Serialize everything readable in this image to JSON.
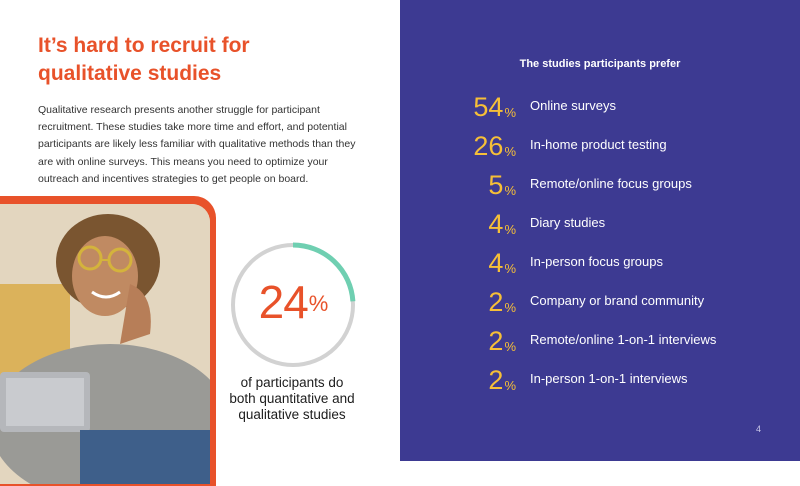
{
  "left": {
    "title_lines": [
      "It’s hard to recruit for",
      "qualitative studies"
    ],
    "body": "Qualitative research presents another struggle for participant recruitment. These studies take more time and effort, and potential participants are likely less familiar with qualitative methods than they are with online surveys. This means you need to optimize your outreach and incentives strategies to get people on board."
  },
  "stat": {
    "value": "24",
    "unit": "%",
    "fraction": 0.24,
    "caption_lines": [
      "of participants do",
      "both quantitative and",
      "qualitative studies"
    ]
  },
  "right": {
    "title": "The studies participants prefer",
    "items": [
      {
        "value": "54",
        "unit": "%",
        "label": "Online surveys"
      },
      {
        "value": "26",
        "unit": "%",
        "label": "In-home product testing"
      },
      {
        "value": "5",
        "unit": "%",
        "label": "Remote/online focus groups"
      },
      {
        "value": "4",
        "unit": "%",
        "label": "Diary studies"
      },
      {
        "value": "4",
        "unit": "%",
        "label": "In-person focus groups"
      },
      {
        "value": "2",
        "unit": "%",
        "label": "Company or brand community"
      },
      {
        "value": "2",
        "unit": "%",
        "label": "Remote/online 1-on-1 interviews"
      },
      {
        "value": "2",
        "unit": "%",
        "label": "In-person 1-on-1 interviews"
      }
    ]
  },
  "page_number": "4",
  "colors": {
    "accent_orange": "#e8522a",
    "panel_purple": "#3d3a92",
    "number_gold": "#f6bf38",
    "donut_teal": "#6fcfb1",
    "donut_track": "#d2d2d2"
  },
  "icons": {
    "photo": "woman-with-laptop-photo"
  }
}
